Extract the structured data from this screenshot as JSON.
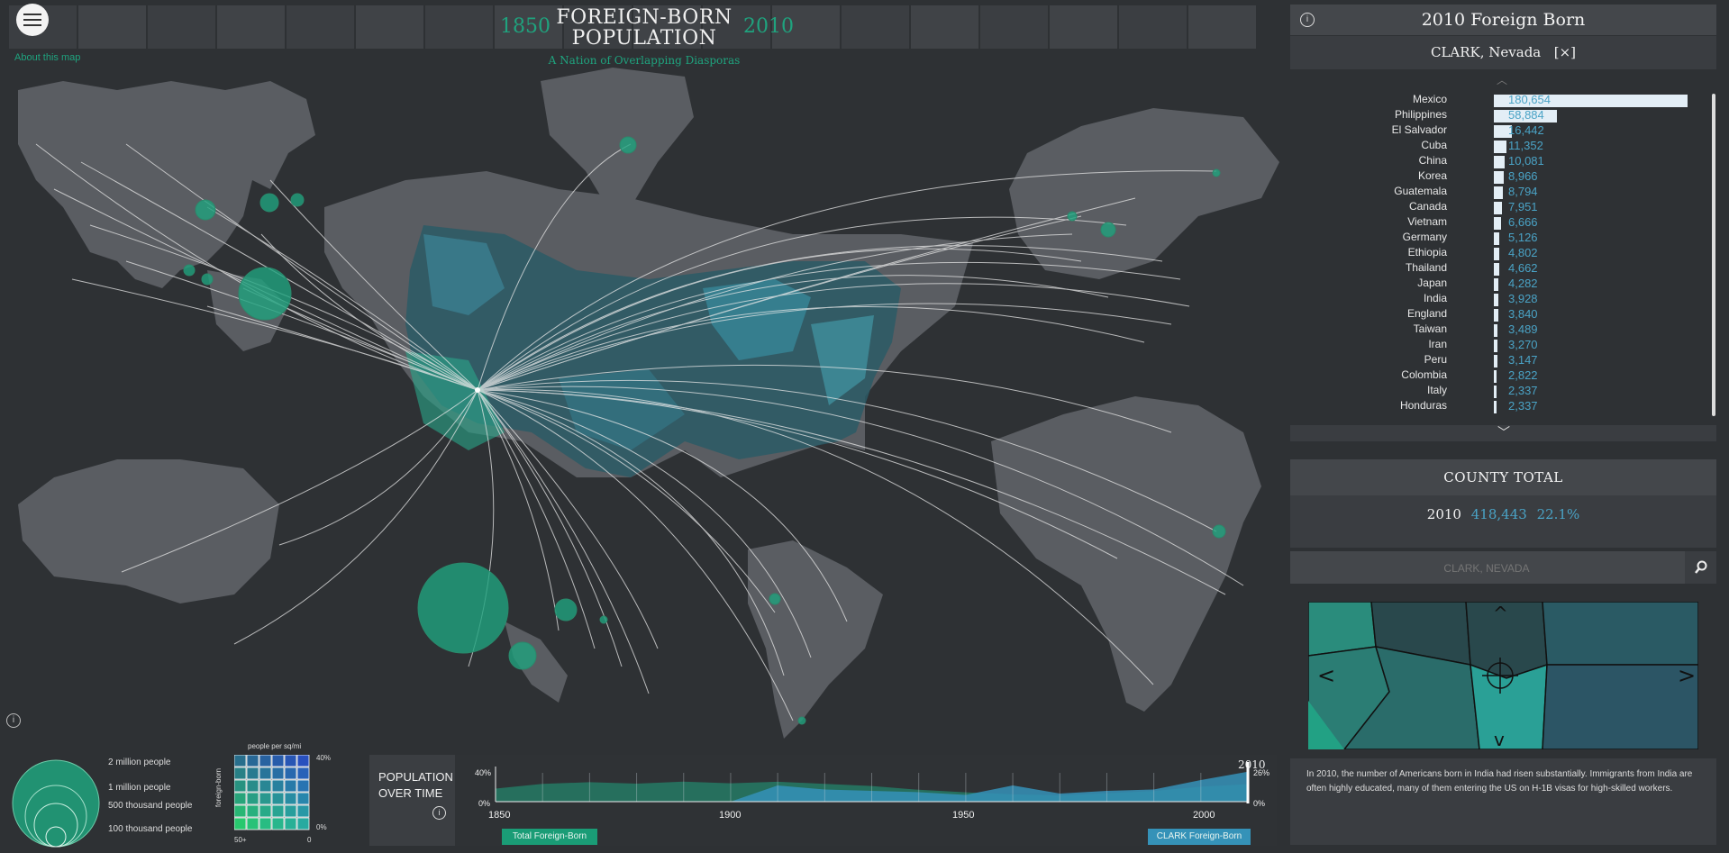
{
  "header": {
    "title_line1": "FOREIGN-BORN",
    "title_line2": "POPULATION",
    "subtitle": "A Nation of Overlapping Diasporas",
    "year_start": "1850",
    "year_end": "2010",
    "about_link": "About this map"
  },
  "panel": {
    "title": "2010 Foreign Born",
    "county": "CLARK, Nevada",
    "close_label": "[×]",
    "countries": [
      {
        "name": "Mexico",
        "value": 180654,
        "label": "180,654"
      },
      {
        "name": "Philippines",
        "value": 58884,
        "label": "58,884"
      },
      {
        "name": "El Salvador",
        "value": 16442,
        "label": "16,442"
      },
      {
        "name": "Cuba",
        "value": 11352,
        "label": "11,352"
      },
      {
        "name": "China",
        "value": 10081,
        "label": "10,081"
      },
      {
        "name": "Korea",
        "value": 8966,
        "label": "8,966"
      },
      {
        "name": "Guatemala",
        "value": 8794,
        "label": "8,794"
      },
      {
        "name": "Canada",
        "value": 7951,
        "label": "7,951"
      },
      {
        "name": "Vietnam",
        "value": 6666,
        "label": "6,666"
      },
      {
        "name": "Germany",
        "value": 5126,
        "label": "5,126"
      },
      {
        "name": "Ethiopia",
        "value": 4802,
        "label": "4,802"
      },
      {
        "name": "Thailand",
        "value": 4662,
        "label": "4,662"
      },
      {
        "name": "Japan",
        "value": 4282,
        "label": "4,282"
      },
      {
        "name": "India",
        "value": 3928,
        "label": "3,928"
      },
      {
        "name": "England",
        "value": 3840,
        "label": "3,840"
      },
      {
        "name": "Taiwan",
        "value": 3489,
        "label": "3,489"
      },
      {
        "name": "Iran",
        "value": 3270,
        "label": "3,270"
      },
      {
        "name": "Peru",
        "value": 3147,
        "label": "3,147"
      },
      {
        "name": "Colombia",
        "value": 2822,
        "label": "2,822"
      },
      {
        "name": "Italy",
        "value": 2337,
        "label": "2,337"
      },
      {
        "name": "Honduras",
        "value": 2337,
        "label": "2,337"
      }
    ]
  },
  "totals": {
    "heading": "COUNTY TOTAL",
    "year": "2010",
    "count": "418,443",
    "percent": "22.1%"
  },
  "search": {
    "placeholder": "CLARK, NEVADA"
  },
  "description": "In 2010, the number of Americans born in India had risen substantially. Immigrants from India are often highly educated, many of them entering the US on H-1B visas for high-skilled workers.",
  "legend": {
    "sizes": [
      "2 million people",
      "1 million people",
      "500 thousand people",
      "100 thousand people"
    ],
    "density_title": "people per sq/mi",
    "density_ylabel": "foreign-born",
    "density_top_pct": "40%",
    "density_bottom_pct": "0%",
    "density_left": "50+",
    "density_right": "0"
  },
  "timeline": {
    "title_line1": "POPULATION",
    "title_line2": "OVER TIME",
    "left_max": "40%",
    "left_min": "0%",
    "right_max": "26%",
    "right_min": "0%",
    "ticks": [
      "1850",
      "1900",
      "1950",
      "2000"
    ],
    "current_year": "2010",
    "total_button": "Total Foreign-Born",
    "county_button": "CLARK Foreign-Born"
  },
  "colors": {
    "background": "#2e3134",
    "accent_green": "#1fa37e",
    "accent_blue": "#4aa3c6",
    "land": "#5a5d62"
  },
  "chart_data": {
    "type": "area",
    "x": [
      1850,
      1860,
      1870,
      1880,
      1890,
      1900,
      1910,
      1920,
      1930,
      1940,
      1950,
      1960,
      1970,
      1980,
      1990,
      2000,
      2010
    ],
    "series": [
      {
        "name": "Total Foreign-Born",
        "values": [
          9.7,
          13.2,
          14.4,
          13.3,
          14.8,
          13.6,
          14.7,
          13.2,
          11.6,
          8.8,
          6.9,
          5.4,
          4.7,
          6.2,
          7.9,
          11.1,
          12.9
        ]
      },
      {
        "name": "CLARK Foreign-Born",
        "values": [
          0,
          0,
          0,
          0,
          0,
          0,
          12,
          9,
          8,
          7,
          5,
          12,
          6,
          8,
          9,
          16,
          22.1
        ]
      }
    ],
    "ylim": [
      0,
      26
    ]
  }
}
